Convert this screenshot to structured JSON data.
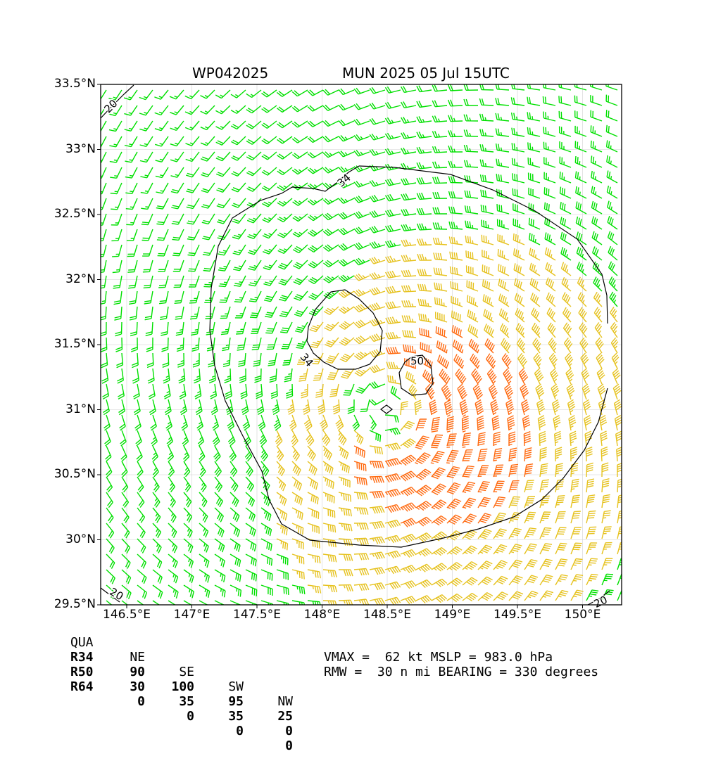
{
  "title": {
    "left": "WP042025",
    "right": "MUN 2025 05 Jul 15UTC"
  },
  "map": {
    "lon_range": [
      146.3,
      150.3
    ],
    "lat_range": [
      29.5,
      33.5
    ],
    "xticks": [
      {
        "value": 146.5,
        "label": "146.5°E"
      },
      {
        "value": 147.0,
        "label": "147°E"
      },
      {
        "value": 147.5,
        "label": "147.5°E"
      },
      {
        "value": 148.0,
        "label": "148°E"
      },
      {
        "value": 148.5,
        "label": "148.5°E"
      },
      {
        "value": 149.0,
        "label": "149°E"
      },
      {
        "value": 149.5,
        "label": "149.5°E"
      },
      {
        "value": 150.0,
        "label": "150°E"
      }
    ],
    "yticks": [
      {
        "value": 33.5,
        "label": "33.5°N"
      },
      {
        "value": 33.0,
        "label": "33°N"
      },
      {
        "value": 32.5,
        "label": "32.5°N"
      },
      {
        "value": 32.0,
        "label": "32°N"
      },
      {
        "value": 31.5,
        "label": "31.5°N"
      },
      {
        "value": 31.0,
        "label": "31°N"
      },
      {
        "value": 30.5,
        "label": "30.5°N"
      },
      {
        "value": 30.0,
        "label": "30°N"
      },
      {
        "value": 29.5,
        "label": "29.5°N"
      }
    ],
    "grid": true,
    "storm_center": {
      "lon": 148.5,
      "lat": 31.0
    },
    "colors": {
      "below_34": "#00e000",
      "34_to_50": "#e6c21e",
      "50_plus": "#ff6a10",
      "contour": "#000000"
    },
    "contour_labels": [
      {
        "text": "34",
        "lon": 148.17,
        "lat": 32.76,
        "rotate": -40
      },
      {
        "text": "34",
        "lon": 147.88,
        "lat": 31.38,
        "rotate": 50
      },
      {
        "text": "50",
        "lon": 148.73,
        "lat": 31.37,
        "rotate": 0
      },
      {
        "text": "20",
        "lon": 146.38,
        "lat": 33.33,
        "rotate": -45
      },
      {
        "text": "20",
        "lon": 146.42,
        "lat": 29.58,
        "rotate": 30
      },
      {
        "text": "20",
        "lon": 150.14,
        "lat": 29.52,
        "rotate": -25
      }
    ]
  },
  "table": {
    "headers": [
      "QUA",
      "NE",
      "SE",
      "SW",
      "NW"
    ],
    "rows": [
      [
        "R34",
        "90",
        "100",
        "95",
        "25"
      ],
      [
        "R50",
        "30",
        "35",
        "35",
        "0"
      ],
      [
        "R64",
        "0",
        "0",
        "0",
        "0"
      ]
    ]
  },
  "summary": {
    "line1": "VMAX =  62 kt MSLP = 983.0 hPa",
    "line2": "RMW =  30 n mi BEARING = 330 degrees"
  }
}
